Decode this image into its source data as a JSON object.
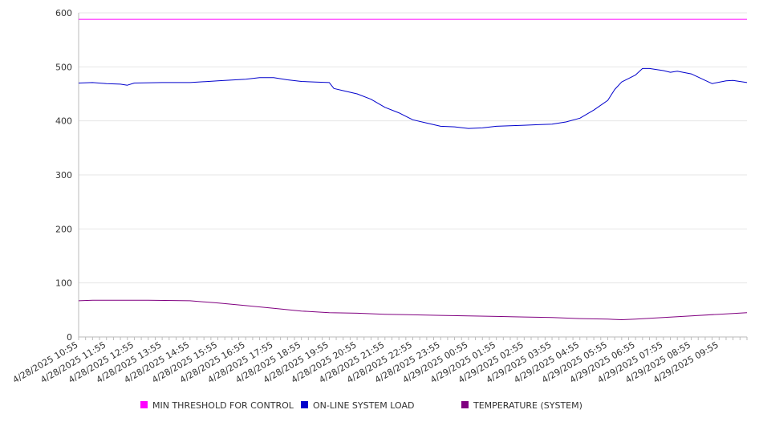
{
  "chart_data": {
    "type": "line",
    "title": "",
    "xlabel": "",
    "ylabel": "",
    "ylim": [
      0,
      600
    ],
    "y_ticks": [
      0,
      100,
      200,
      300,
      400,
      500,
      600
    ],
    "grid": "horizontal",
    "legend_position": "bottom",
    "x_start": "4/28/2025 10:55",
    "x_end": "4/29/2025 10:55",
    "x_tick_labels": [
      "4/28/2025 10:55",
      "4/28/2025 11:55",
      "4/28/2025 12:55",
      "4/28/2025 13:55",
      "4/28/2025 14:55",
      "4/28/2025 15:55",
      "4/28/2025 16:55",
      "4/28/2025 17:55",
      "4/28/2025 18:55",
      "4/28/2025 19:55",
      "4/28/2025 20:55",
      "4/28/2025 21:55",
      "4/28/2025 22:55",
      "4/28/2025 23:55",
      "4/29/2025 00:55",
      "4/29/2025 01:55",
      "4/29/2025 02:55",
      "4/29/2025 03:55",
      "4/29/2025 04:55",
      "4/29/2025 05:55",
      "4/29/2025 06:55",
      "4/29/2025 07:55",
      "4/29/2025 08:55",
      "4/29/2025 09:55"
    ],
    "series": [
      {
        "name": "MIN THRESHOLD FOR CONTROL",
        "color": "#ff00ff",
        "points": [
          [
            "4/28/2025 10:55",
            588
          ],
          [
            "4/29/2025 10:55",
            588
          ]
        ]
      },
      {
        "name": "ON-LINE SYSTEM LOAD",
        "color": "#0000cc",
        "points": [
          [
            "4/28/2025 10:55",
            470
          ],
          [
            "4/28/2025 11:25",
            471
          ],
          [
            "4/28/2025 11:55",
            469
          ],
          [
            "4/28/2025 12:25",
            468
          ],
          [
            "4/28/2025 12:40",
            466
          ],
          [
            "4/28/2025 12:55",
            470
          ],
          [
            "4/28/2025 13:55",
            471
          ],
          [
            "4/28/2025 14:55",
            471
          ],
          [
            "4/28/2025 15:55",
            474
          ],
          [
            "4/28/2025 16:55",
            477
          ],
          [
            "4/28/2025 17:25",
            480
          ],
          [
            "4/28/2025 17:55",
            480
          ],
          [
            "4/28/2025 18:25",
            476
          ],
          [
            "4/28/2025 18:55",
            473
          ],
          [
            "4/28/2025 19:25",
            472
          ],
          [
            "4/28/2025 19:55",
            471
          ],
          [
            "4/28/2025 20:05",
            460
          ],
          [
            "4/28/2025 20:25",
            456
          ],
          [
            "4/28/2025 20:55",
            450
          ],
          [
            "4/28/2025 21:25",
            440
          ],
          [
            "4/28/2025 21:55",
            425
          ],
          [
            "4/28/2025 22:25",
            415
          ],
          [
            "4/28/2025 22:55",
            402
          ],
          [
            "4/28/2025 23:25",
            396
          ],
          [
            "4/28/2025 23:55",
            390
          ],
          [
            "4/29/2025 00:25",
            389
          ],
          [
            "4/29/2025 00:55",
            386
          ],
          [
            "4/29/2025 01:25",
            387
          ],
          [
            "4/29/2025 01:55",
            390
          ],
          [
            "4/29/2025 02:25",
            391
          ],
          [
            "4/29/2025 02:55",
            392
          ],
          [
            "4/29/2025 03:25",
            393
          ],
          [
            "4/29/2025 03:55",
            394
          ],
          [
            "4/29/2025 04:25",
            398
          ],
          [
            "4/29/2025 04:55",
            405
          ],
          [
            "4/29/2025 05:25",
            420
          ],
          [
            "4/29/2025 05:55",
            438
          ],
          [
            "4/29/2025 06:10",
            458
          ],
          [
            "4/29/2025 06:25",
            472
          ],
          [
            "4/29/2025 06:55",
            485
          ],
          [
            "4/29/2025 07:10",
            497
          ],
          [
            "4/29/2025 07:25",
            497
          ],
          [
            "4/29/2025 07:55",
            493
          ],
          [
            "4/29/2025 08:10",
            490
          ],
          [
            "4/29/2025 08:25",
            492
          ],
          [
            "4/29/2025 08:55",
            487
          ],
          [
            "4/29/2025 09:25",
            475
          ],
          [
            "4/29/2025 09:40",
            469
          ],
          [
            "4/29/2025 10:10",
            474
          ],
          [
            "4/29/2025 10:25",
            475
          ],
          [
            "4/29/2025 10:55",
            471
          ]
        ]
      },
      {
        "name": "TEMPERATURE (SYSTEM)",
        "color": "#800080",
        "points": [
          [
            "4/28/2025 10:55",
            67
          ],
          [
            "4/28/2025 11:25",
            68
          ],
          [
            "4/28/2025 12:25",
            68
          ],
          [
            "4/28/2025 13:25",
            68
          ],
          [
            "4/28/2025 14:55",
            67
          ],
          [
            "4/28/2025 15:55",
            63
          ],
          [
            "4/28/2025 16:55",
            58
          ],
          [
            "4/28/2025 17:55",
            53
          ],
          [
            "4/28/2025 18:55",
            48
          ],
          [
            "4/28/2025 19:55",
            45
          ],
          [
            "4/28/2025 20:55",
            44
          ],
          [
            "4/28/2025 21:55",
            42
          ],
          [
            "4/28/2025 22:55",
            41
          ],
          [
            "4/28/2025 23:55",
            40
          ],
          [
            "4/29/2025 00:55",
            39
          ],
          [
            "4/29/2025 01:55",
            38
          ],
          [
            "4/29/2025 02:55",
            37
          ],
          [
            "4/29/2025 03:55",
            36
          ],
          [
            "4/29/2025 04:55",
            34
          ],
          [
            "4/29/2025 05:55",
            33
          ],
          [
            "4/29/2025 06:25",
            32
          ],
          [
            "4/29/2025 06:55",
            33
          ],
          [
            "4/29/2025 07:55",
            36
          ],
          [
            "4/29/2025 08:55",
            39
          ],
          [
            "4/29/2025 09:55",
            42
          ],
          [
            "4/29/2025 10:55",
            45
          ]
        ]
      }
    ]
  }
}
